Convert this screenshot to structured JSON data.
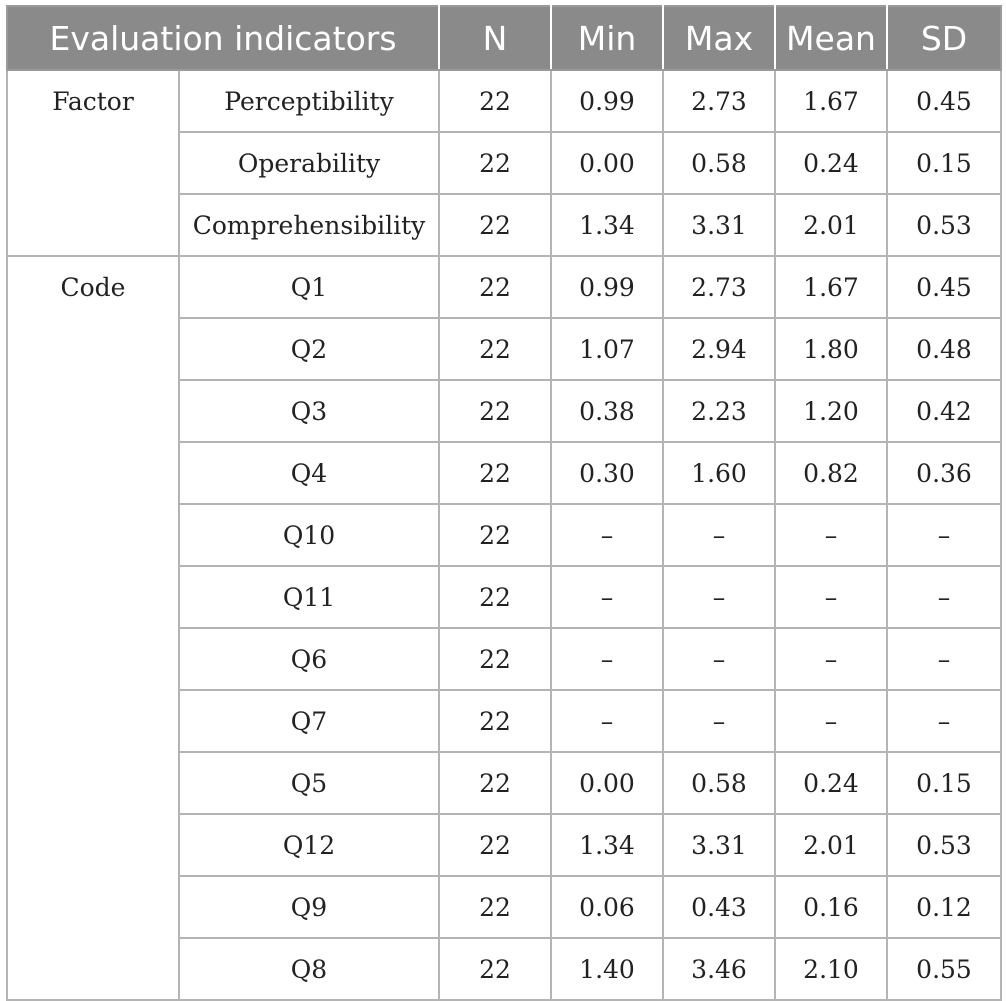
{
  "table": {
    "headers": [
      "Evaluation indicators",
      "N",
      "Min",
      "Max",
      "Mean",
      "SD"
    ],
    "groups": [
      {
        "label": "Factor",
        "rows": [
          [
            "Perceptibility",
            "22",
            "0.99",
            "2.73",
            "1.67",
            "0.45"
          ],
          [
            "Operability",
            "22",
            "0.00",
            "0.58",
            "0.24",
            "0.15"
          ],
          [
            "Comprehensibility",
            "22",
            "1.34",
            "3.31",
            "2.01",
            "0.53"
          ]
        ]
      },
      {
        "label": "Code",
        "rows": [
          [
            "Q1",
            "22",
            "0.99",
            "2.73",
            "1.67",
            "0.45"
          ],
          [
            "Q2",
            "22",
            "1.07",
            "2.94",
            "1.80",
            "0.48"
          ],
          [
            "Q3",
            "22",
            "0.38",
            "2.23",
            "1.20",
            "0.42"
          ],
          [
            "Q4",
            "22",
            "0.30",
            "1.60",
            "0.82",
            "0.36"
          ],
          [
            "Q10",
            "22",
            "–",
            "–",
            "–",
            "–"
          ],
          [
            "Q11",
            "22",
            "–",
            "–",
            "–",
            "–"
          ],
          [
            "Q6",
            "22",
            "–",
            "–",
            "–",
            "–"
          ],
          [
            "Q7",
            "22",
            "–",
            "–",
            "–",
            "–"
          ],
          [
            "Q5",
            "22",
            "0.00",
            "0.58",
            "0.24",
            "0.15"
          ],
          [
            "Q12",
            "22",
            "1.34",
            "3.31",
            "2.01",
            "0.53"
          ],
          [
            "Q9",
            "22",
            "0.06",
            "0.43",
            "0.16",
            "0.12"
          ],
          [
            "Q8",
            "22",
            "1.40",
            "3.46",
            "2.10",
            "0.55"
          ]
        ]
      }
    ]
  }
}
